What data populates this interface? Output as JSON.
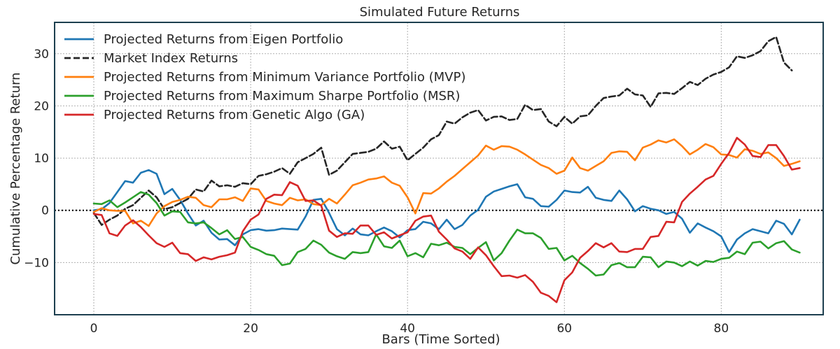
{
  "chart_data": {
    "type": "line",
    "title": "Simulated Future Returns",
    "xlabel": "Bars (Time Sorted)",
    "ylabel": "Cumulative Percentage Return",
    "xlim": [
      -5,
      93
    ],
    "ylim": [
      -20,
      36
    ],
    "xticks": [
      0,
      20,
      40,
      60,
      80
    ],
    "yticks": [
      -10,
      0,
      10,
      20,
      30
    ],
    "grid": true,
    "legend_position": "top-left",
    "reference_line": {
      "y": 0,
      "style": "dotted",
      "color": "#000000"
    },
    "series": [
      {
        "name": "Projected Returns from Eigen Portfolio",
        "color": "#1f77b4",
        "dash": "solid",
        "x_start": 0,
        "values": [
          0.0,
          0.2,
          1.4,
          3.5,
          5.6,
          5.3,
          7.2,
          7.7,
          7.0,
          3.1,
          4.1,
          2.0,
          -0.6,
          -2.9,
          -2.0,
          -4.3,
          -5.6,
          -5.5,
          -6.7,
          -4.6,
          -3.8,
          -3.6,
          -3.9,
          -3.8,
          -3.5,
          -3.6,
          -3.7,
          -1.2,
          2.0,
          2.2,
          -0.5,
          -3.6,
          -4.8,
          -3.5,
          -4.6,
          -4.8,
          -4.0,
          -3.3,
          -4.0,
          -5.2,
          -3.8,
          -3.6,
          -2.2,
          -2.5,
          -3.6,
          -1.8,
          -3.6,
          -2.8,
          -1.0,
          0.1,
          2.6,
          3.6,
          4.1,
          4.6,
          5.0,
          2.5,
          2.2,
          0.8,
          0.7,
          2.0,
          3.8,
          3.5,
          3.4,
          4.5,
          2.4,
          2.0,
          1.8,
          3.8,
          2.1,
          -0.2,
          0.8,
          0.3,
          0.0,
          -0.7,
          -0.3,
          -1.6,
          -4.3,
          -2.5,
          -3.3,
          -4.0,
          -5.0,
          -8.0,
          -5.6,
          -4.4,
          -3.6,
          -4.0,
          -4.4,
          -2.0,
          -2.6,
          -4.6,
          -1.8
        ]
      },
      {
        "name": "Market Index Returns",
        "color": "#262626",
        "dash": "dashed",
        "x_start": 0,
        "values": [
          -0.5,
          -2.8,
          -1.8,
          -1.0,
          0.3,
          1.0,
          2.4,
          3.8,
          2.5,
          0.2,
          0.6,
          1.4,
          2.2,
          4.0,
          3.6,
          5.7,
          4.6,
          4.8,
          4.5,
          5.2,
          5.0,
          6.6,
          6.9,
          7.4,
          8.1,
          7.0,
          9.2,
          10.0,
          10.8,
          12.0,
          6.8,
          7.6,
          9.2,
          10.8,
          11.0,
          11.2,
          11.8,
          13.2,
          11.8,
          12.2,
          9.6,
          10.8,
          12.0,
          13.6,
          14.4,
          17.0,
          16.6,
          17.8,
          18.7,
          19.2,
          17.2,
          17.9,
          18.0,
          17.3,
          17.5,
          20.2,
          19.2,
          19.4,
          17.0,
          16.1,
          17.9,
          16.6,
          18.0,
          18.2,
          20.0,
          21.5,
          21.8,
          22.0,
          23.3,
          22.2,
          22.0,
          19.8,
          22.4,
          22.5,
          22.3,
          23.4,
          24.6,
          24.0,
          25.2,
          26.0,
          26.5,
          27.4,
          29.5,
          29.2,
          29.7,
          30.5,
          32.4,
          33.2,
          28.3,
          26.8
        ]
      },
      {
        "name": "Projected Returns from Minimum Variance Portfolio (MVP)",
        "color": "#ff7f0e",
        "dash": "solid",
        "x_start": 0,
        "values": [
          -0.3,
          0.4,
          0.0,
          -0.1,
          -0.1,
          -2.5,
          -2.0,
          -3.0,
          -0.6,
          0.8,
          1.6,
          2.0,
          2.6,
          2.4,
          1.0,
          0.6,
          2.1,
          2.1,
          2.5,
          1.8,
          4.2,
          4.0,
          1.8,
          1.3,
          1.0,
          2.4,
          1.9,
          2.1,
          1.2,
          1.0,
          2.2,
          1.3,
          3.0,
          4.8,
          5.3,
          5.9,
          6.1,
          6.5,
          5.3,
          4.7,
          2.5,
          -0.6,
          3.3,
          3.2,
          4.2,
          5.5,
          6.6,
          7.9,
          9.2,
          10.5,
          12.4,
          11.6,
          12.3,
          12.2,
          11.6,
          10.7,
          9.7,
          8.7,
          8.1,
          7.0,
          7.6,
          10.1,
          8.1,
          7.6,
          8.5,
          9.4,
          11.0,
          11.3,
          11.2,
          9.6,
          12.0,
          12.6,
          13.4,
          13.0,
          13.6,
          12.3,
          10.7,
          11.6,
          12.7,
          12.1,
          10.7,
          10.6,
          10.1,
          11.7,
          11.4,
          10.8,
          11.1,
          10.0,
          8.5,
          8.9,
          9.4
        ]
      },
      {
        "name": "Projected Returns from Maximum Sharpe Portfolio (MSR)",
        "color": "#2ca02c",
        "dash": "solid",
        "x_start": 0,
        "values": [
          1.3,
          1.2,
          1.9,
          0.6,
          1.5,
          2.5,
          3.5,
          3.0,
          1.4,
          -1.0,
          -0.2,
          -0.3,
          -2.3,
          -2.5,
          -2.3,
          -3.4,
          -4.6,
          -3.8,
          -5.5,
          -5.1,
          -7.0,
          -7.6,
          -8.4,
          -8.7,
          -10.5,
          -10.2,
          -8.0,
          -7.4,
          -5.8,
          -6.6,
          -8.1,
          -8.8,
          -9.3,
          -8.0,
          -8.2,
          -8.0,
          -4.6,
          -6.9,
          -7.2,
          -5.8,
          -8.8,
          -8.2,
          -9.0,
          -6.4,
          -6.7,
          -6.2,
          -7.0,
          -7.2,
          -8.4,
          -7.2,
          -6.1,
          -9.6,
          -8.2,
          -5.8,
          -3.7,
          -4.4,
          -4.4,
          -5.3,
          -7.4,
          -7.2,
          -9.6,
          -8.7,
          -10.1,
          -11.2,
          -12.5,
          -12.3,
          -10.5,
          -10.1,
          -10.9,
          -10.9,
          -8.9,
          -9.0,
          -10.9,
          -9.8,
          -10.0,
          -10.7,
          -9.8,
          -10.6,
          -9.7,
          -9.9,
          -9.3,
          -9.1,
          -7.9,
          -8.4,
          -6.2,
          -6.0,
          -7.3,
          -6.3,
          -5.9,
          -7.5,
          -8.1
        ]
      },
      {
        "name": "Projected Returns from Genetic Algo (GA)",
        "color": "#d62728",
        "dash": "solid",
        "x_start": 0,
        "values": [
          -0.7,
          -0.9,
          -4.4,
          -4.9,
          -2.9,
          -1.9,
          -3.2,
          -4.8,
          -6.3,
          -7.0,
          -6.2,
          -8.2,
          -8.4,
          -9.7,
          -9.0,
          -9.4,
          -8.9,
          -8.6,
          -8.1,
          -4.0,
          -1.8,
          -0.8,
          2.2,
          3.0,
          2.9,
          5.4,
          4.7,
          1.8,
          1.9,
          0.9,
          -3.9,
          -5.1,
          -4.4,
          -4.5,
          -2.9,
          -2.9,
          -4.7,
          -4.2,
          -5.4,
          -4.8,
          -4.2,
          -2.0,
          -1.2,
          -1.0,
          -4.1,
          -5.6,
          -7.3,
          -7.9,
          -9.3,
          -7.1,
          -8.6,
          -10.7,
          -12.6,
          -12.5,
          -12.9,
          -12.4,
          -13.7,
          -15.8,
          -16.4,
          -17.6,
          -13.4,
          -11.9,
          -9.1,
          -7.8,
          -6.3,
          -7.1,
          -6.3,
          -7.9,
          -8.0,
          -7.4,
          -7.4,
          -5.1,
          -4.9,
          -2.2,
          -2.3,
          1.6,
          3.2,
          4.5,
          5.9,
          6.6,
          8.9,
          11.0,
          13.9,
          12.6,
          10.4,
          10.2,
          12.5,
          12.5,
          10.4,
          7.8,
          8.1
        ]
      }
    ]
  }
}
